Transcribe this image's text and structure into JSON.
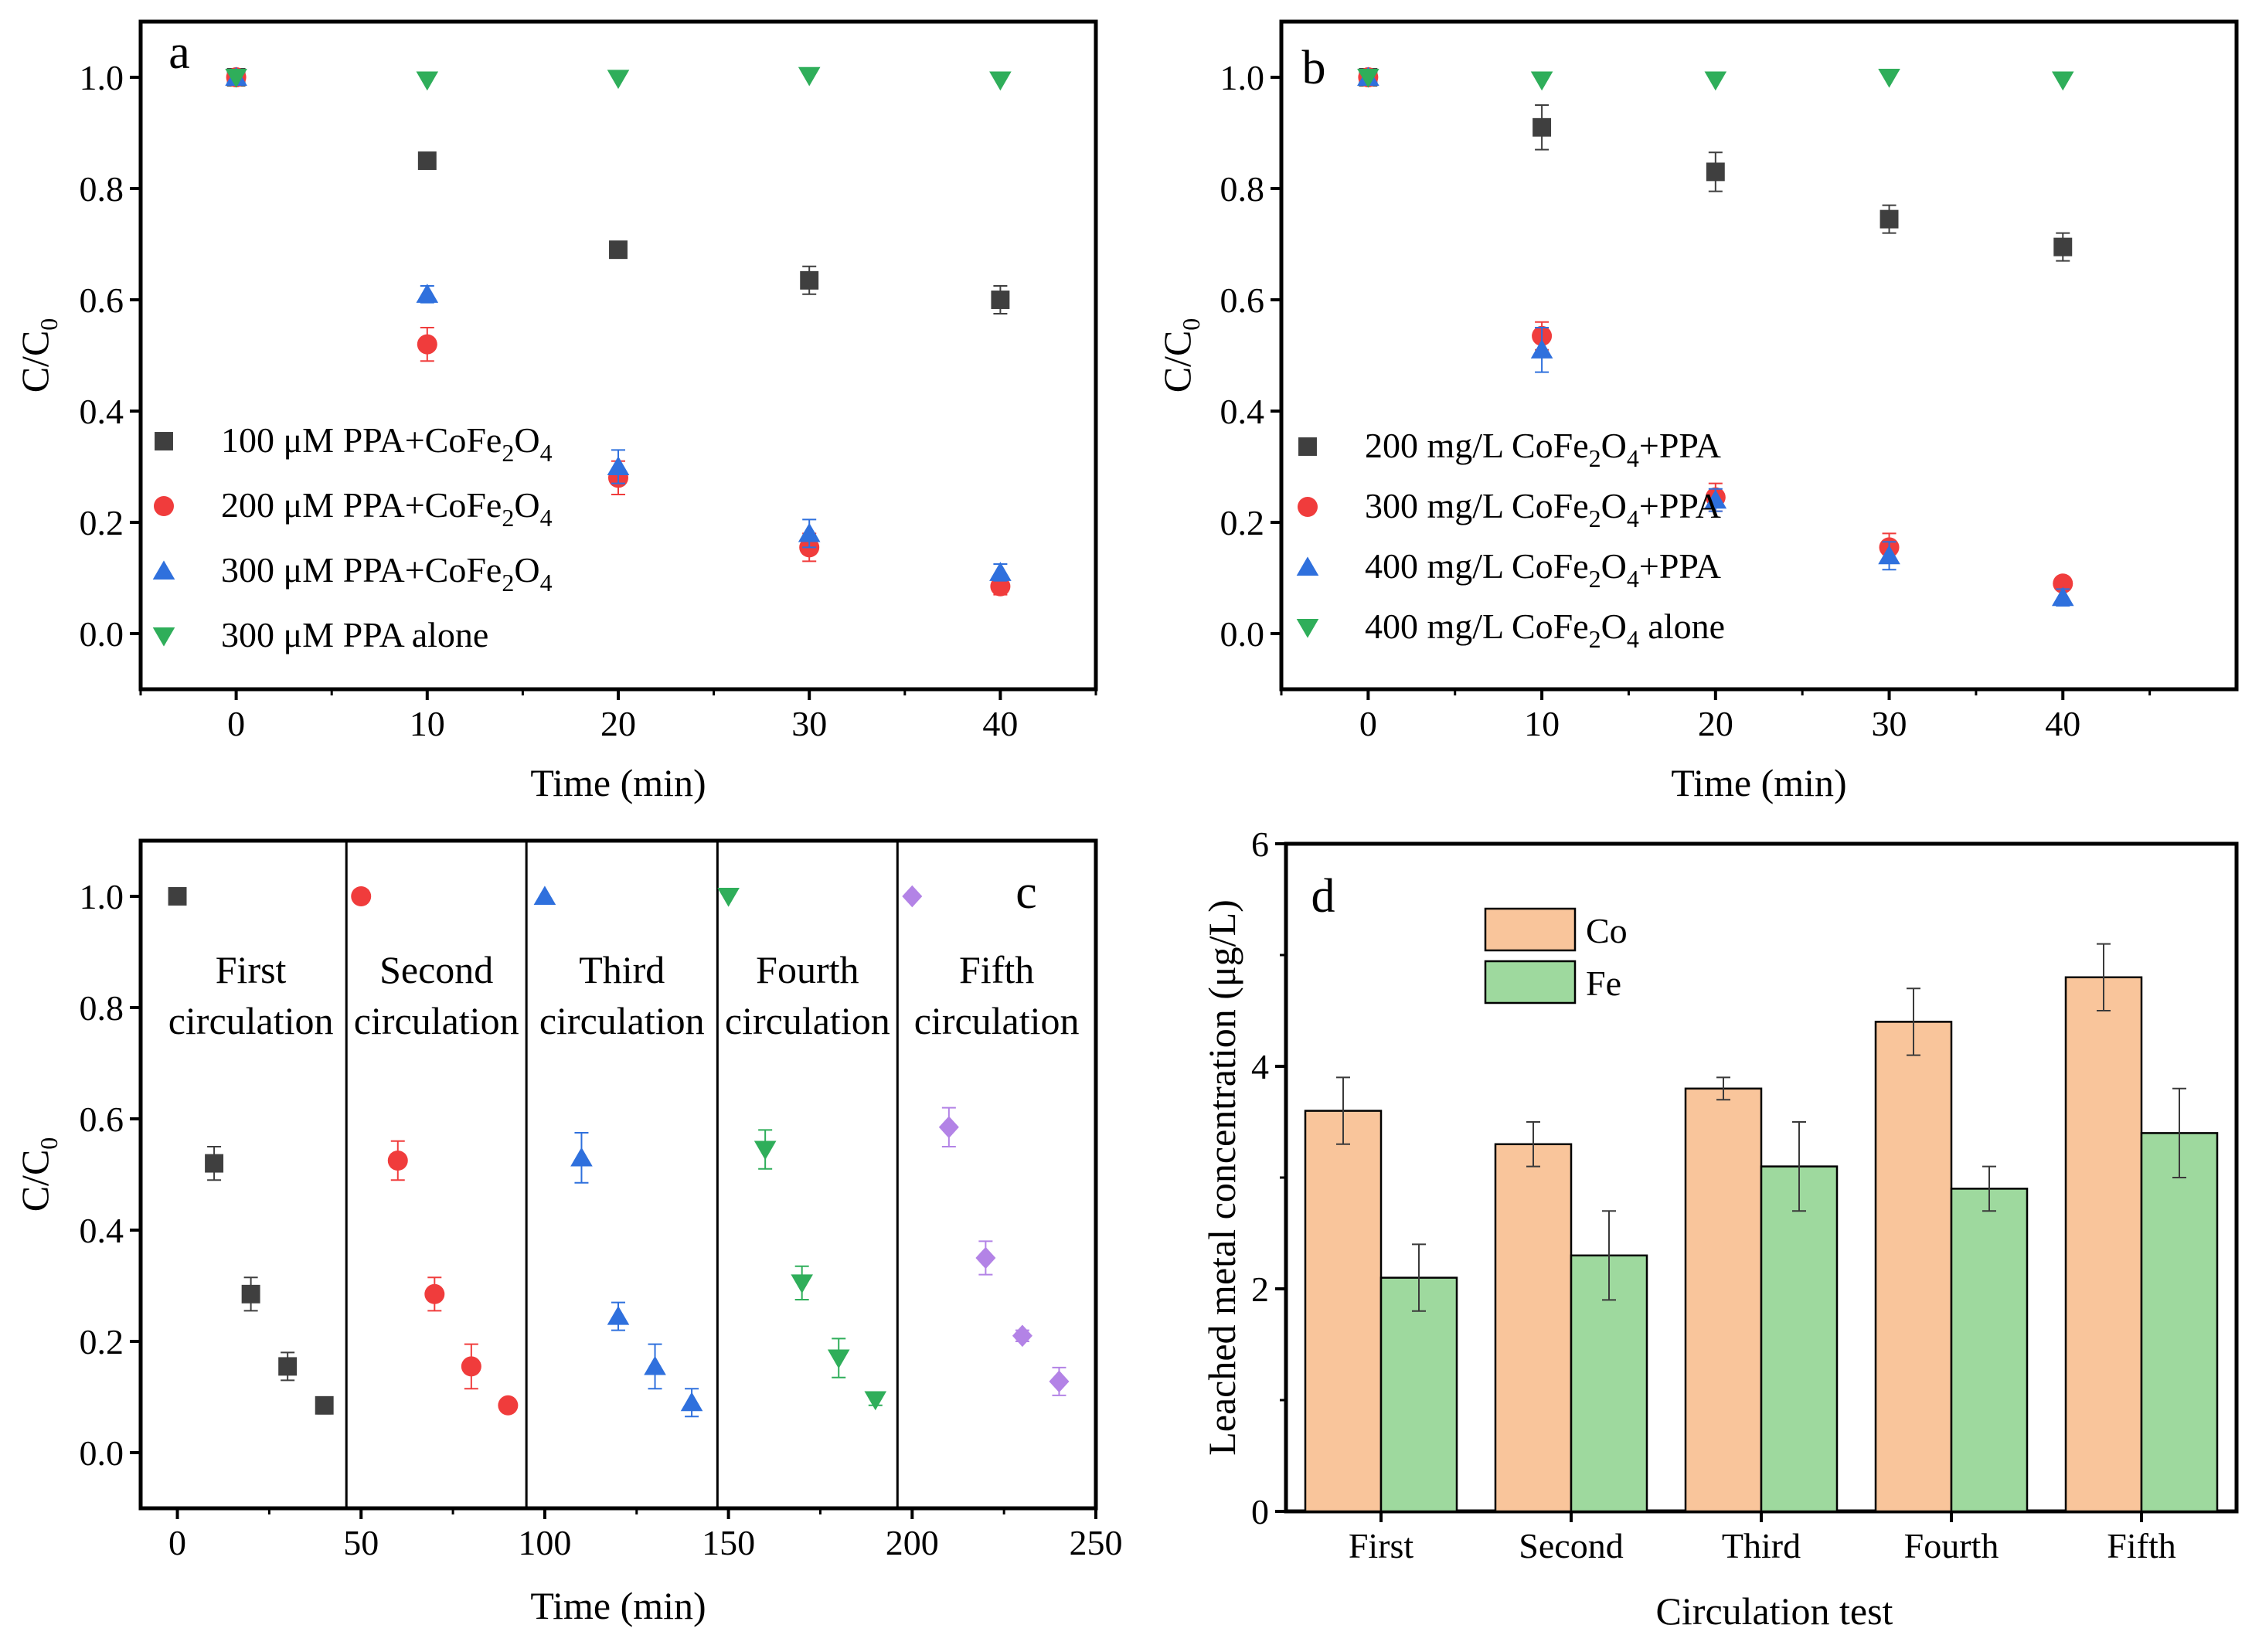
{
  "colors": {
    "series_gray": "#3f3f3f",
    "series_red": "#f03c3c",
    "series_blue": "#2f70dd",
    "series_green": "#2fae5a",
    "series_purple": "#b383e6",
    "bar_co": "#f9c59b",
    "bar_fe": "#9ed99e"
  },
  "chart_data": [
    {
      "panel": "a",
      "type": "scatter",
      "xlabel": "Time (min)",
      "ylabel": "C/C0",
      "xlim": [
        -5,
        45
      ],
      "ylim": [
        -0.1,
        1.1
      ],
      "xticks": [
        "0",
        "10",
        "20",
        "30",
        "40"
      ],
      "yticks": [
        "0.0",
        "0.2",
        "0.4",
        "0.6",
        "0.8",
        "1.0"
      ],
      "legend_position": "bottom-left",
      "x": [
        0,
        10,
        20,
        30,
        40
      ],
      "series": [
        {
          "name": "100 μM PPA+CoFe2O4",
          "legend_main": "100 μM PPA+CoFe",
          "legend_sub1": "2",
          "legend_mid": "O",
          "legend_sub2": "4",
          "legend_tail": "",
          "marker": "square",
          "color": "gray",
          "values": [
            1.0,
            0.85,
            0.69,
            0.635,
            0.6
          ],
          "errors": [
            0,
            0.01,
            0.01,
            0.025,
            0.025
          ]
        },
        {
          "name": "200 μM PPA+CoFe2O4",
          "legend_main": "200 μM PPA+CoFe",
          "legend_sub1": "2",
          "legend_mid": "O",
          "legend_sub2": "4",
          "legend_tail": "",
          "marker": "circle",
          "color": "red",
          "values": [
            1.0,
            0.52,
            0.28,
            0.155,
            0.085
          ],
          "errors": [
            0,
            0.03,
            0.03,
            0.025,
            0.015
          ]
        },
        {
          "name": "300 μM PPA+CoFe2O4",
          "legend_main": "300 μM PPA+CoFe",
          "legend_sub1": "2",
          "legend_mid": "O",
          "legend_sub2": "4",
          "legend_tail": "",
          "marker": "triangle-up",
          "color": "blue",
          "values": [
            1.0,
            0.61,
            0.3,
            0.18,
            0.11
          ],
          "errors": [
            0,
            0.015,
            0.03,
            0.025,
            0.015
          ]
        },
        {
          "name": "300 μM PPA alone",
          "legend_main": "300 μM PPA alone",
          "legend_sub1": "",
          "legend_mid": "",
          "legend_sub2": "",
          "legend_tail": "",
          "marker": "triangle-down",
          "color": "green",
          "values": [
            1.0,
            0.995,
            0.998,
            1.003,
            0.995
          ],
          "errors": [
            0,
            0,
            0,
            0,
            0
          ]
        }
      ]
    },
    {
      "panel": "b",
      "type": "scatter",
      "xlabel": "Time (min)",
      "ylabel": "C/C0",
      "xlim": [
        -5,
        50
      ],
      "ylim": [
        -0.1,
        1.1
      ],
      "xticks": [
        "0",
        "10",
        "20",
        "30",
        "40"
      ],
      "yticks": [
        "0.0",
        "0.2",
        "0.4",
        "0.6",
        "0.8",
        "1.0"
      ],
      "legend_position": "bottom-left",
      "x": [
        0,
        10,
        20,
        30,
        40
      ],
      "series": [
        {
          "name": "200 mg/L CoFe2O4+PPA",
          "legend_main": "200 mg/L CoFe",
          "legend_sub1": "2",
          "legend_mid": "O",
          "legend_sub2": "4",
          "legend_tail": "+PPA",
          "marker": "square",
          "color": "gray",
          "values": [
            1.0,
            0.91,
            0.83,
            0.745,
            0.695
          ],
          "errors": [
            0,
            0.04,
            0.035,
            0.025,
            0.025
          ]
        },
        {
          "name": "300 mg/L CoFe2O4+PPA",
          "legend_main": "300 mg/L CoFe",
          "legend_sub1": "2",
          "legend_mid": "O",
          "legend_sub2": "4",
          "legend_tail": "+PPA",
          "marker": "circle",
          "color": "red",
          "values": [
            1.0,
            0.535,
            0.245,
            0.155,
            0.09
          ],
          "errors": [
            0,
            0.025,
            0.025,
            0.025,
            0.01
          ]
        },
        {
          "name": "400 mg/L CoFe2O4+PPA",
          "legend_main": "400 mg/L CoFe",
          "legend_sub1": "2",
          "legend_mid": "O",
          "legend_sub2": "4",
          "legend_tail": "+PPA",
          "marker": "triangle-up",
          "color": "blue",
          "values": [
            1.0,
            0.51,
            0.24,
            0.14,
            0.065
          ],
          "errors": [
            0,
            0.04,
            0.02,
            0.025,
            0.015
          ]
        },
        {
          "name": "400 mg/L CoFe2O4 alone",
          "legend_main": "400 mg/L CoFe",
          "legend_sub1": "2",
          "legend_mid": "O",
          "legend_sub2": "4",
          "legend_tail": " alone",
          "marker": "triangle-down",
          "color": "green",
          "values": [
            1.0,
            0.995,
            0.995,
            1.0,
            0.995
          ],
          "errors": [
            0,
            0,
            0,
            0,
            0
          ]
        }
      ]
    },
    {
      "panel": "c",
      "type": "scatter",
      "xlabel": "Time (min)",
      "ylabel": "C/C0",
      "xlim": [
        -10,
        250
      ],
      "ylim": [
        -0.1,
        1.1
      ],
      "xticks": [
        "0",
        "50",
        "100",
        "150",
        "200",
        "250"
      ],
      "yticks": [
        "0.0",
        "0.2",
        "0.4",
        "0.6",
        "0.8",
        "1.0"
      ],
      "dividers": [
        46,
        95,
        147,
        196
      ],
      "cycles": [
        {
          "line1": "First",
          "line2": "circulation",
          "center": 20
        },
        {
          "line1": "Second",
          "line2": "circulation",
          "center": 70.5
        },
        {
          "line1": "Third",
          "line2": "circulation",
          "center": 121
        },
        {
          "line1": "Fourth",
          "line2": "circulation",
          "center": 171.5
        },
        {
          "line1": "Fifth",
          "line2": "circulation",
          "center": 223
        }
      ],
      "series": [
        {
          "name": "First circulation",
          "marker": "square",
          "color": "gray",
          "x": [
            0,
            10,
            20,
            30,
            40
          ],
          "values": [
            1.0,
            0.52,
            0.285,
            0.155,
            0.085
          ],
          "errors": [
            0,
            0.03,
            0.03,
            0.025,
            0.015
          ]
        },
        {
          "name": "Second circulation",
          "marker": "circle",
          "color": "red",
          "x": [
            50,
            60,
            70,
            80,
            90
          ],
          "values": [
            1.0,
            0.525,
            0.285,
            0.155,
            0.085
          ],
          "errors": [
            0,
            0.035,
            0.03,
            0.04,
            0.01
          ]
        },
        {
          "name": "Third circulation",
          "marker": "triangle-up",
          "color": "blue",
          "x": [
            100,
            110,
            120,
            130,
            140
          ],
          "values": [
            1.0,
            0.53,
            0.245,
            0.155,
            0.09
          ],
          "errors": [
            0,
            0.045,
            0.025,
            0.04,
            0.025
          ]
        },
        {
          "name": "Fourth circulation",
          "marker": "triangle-down",
          "color": "green",
          "x": [
            150,
            160,
            170,
            180,
            190
          ],
          "values": [
            1.0,
            0.545,
            0.305,
            0.17,
            0.095
          ],
          "errors": [
            0,
            0.035,
            0.03,
            0.035,
            0.01
          ]
        },
        {
          "name": "Fifth circulation",
          "marker": "diamond",
          "color": "purple",
          "x": [
            200,
            210,
            220,
            230,
            240
          ],
          "values": [
            1.0,
            0.585,
            0.35,
            0.21,
            0.128
          ],
          "errors": [
            0,
            0.035,
            0.03,
            0.01,
            0.025
          ]
        }
      ]
    },
    {
      "panel": "d",
      "type": "bar",
      "xlabel": "Circulation test",
      "ylabel": "Leached metal concentration (μg/L)",
      "ylim": [
        0,
        6
      ],
      "yticks": [
        "0",
        "2",
        "4",
        "6"
      ],
      "categories": [
        "First",
        "Second",
        "Third",
        "Fourth",
        "Fifth"
      ],
      "legend_position": "top-left",
      "series": [
        {
          "name": "Co",
          "color": "bar_co",
          "values": [
            3.6,
            3.3,
            3.8,
            4.4,
            4.8
          ],
          "errors": [
            0.3,
            0.2,
            0.1,
            0.3,
            0.3
          ]
        },
        {
          "name": "Fe",
          "color": "bar_fe",
          "values": [
            2.1,
            2.3,
            3.1,
            2.9,
            3.4
          ],
          "errors": [
            0.3,
            0.4,
            0.4,
            0.2,
            0.4
          ]
        }
      ]
    }
  ]
}
